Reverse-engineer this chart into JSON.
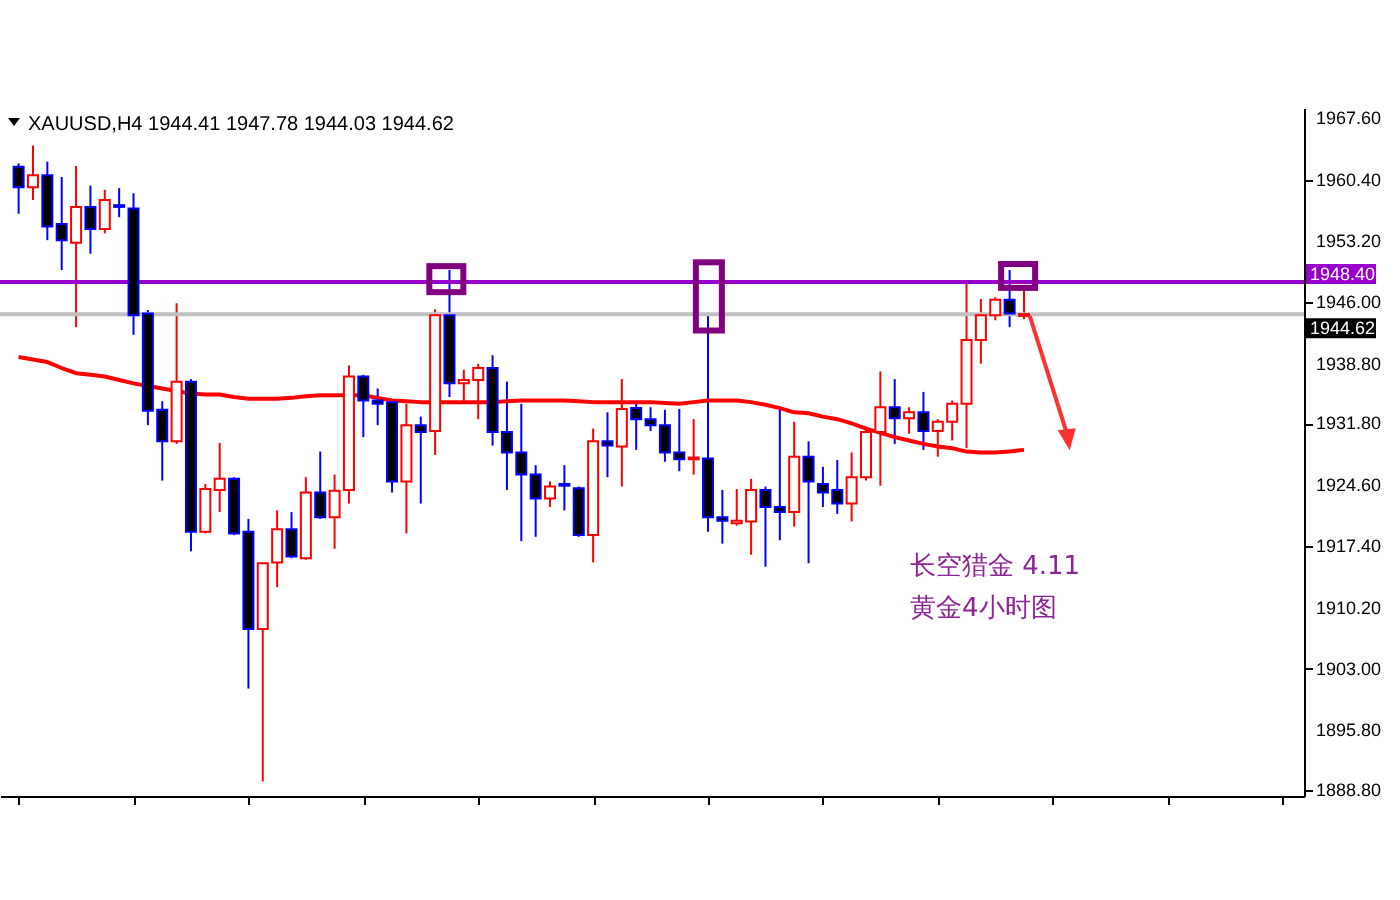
{
  "chart_data": {
    "type": "candlestick",
    "title": "XAUUSD,H4  1944.41 1947.78 1944.03 1944.62",
    "categories": [
      null,
      null,
      null,
      null,
      null,
      null,
      null,
      null,
      null,
      null,
      null,
      null,
      null,
      null,
      null,
      null,
      null,
      null,
      null,
      null,
      null,
      null,
      null,
      null,
      null,
      null,
      null,
      null,
      null,
      null,
      null,
      null,
      null,
      null,
      null,
      null,
      null,
      null,
      null,
      null,
      null,
      null,
      null,
      null,
      null,
      null,
      null,
      null,
      null,
      null,
      null,
      null,
      null,
      null,
      null,
      null,
      null,
      null,
      null,
      null,
      null,
      null,
      null,
      null,
      null,
      null,
      null,
      null,
      null,
      null,
      null
    ],
    "ohlc": [
      [
        1961.9,
        1962.3,
        1956.4,
        1959.5
      ],
      [
        1959.5,
        1964.4,
        1958.0,
        1960.9
      ],
      [
        1960.9,
        1962.5,
        1953.3,
        1954.9
      ],
      [
        1955.2,
        1960.7,
        1949.8,
        1953.3
      ],
      [
        1953.0,
        1962.0,
        1943.1,
        1957.2
      ],
      [
        1957.2,
        1959.7,
        1951.7,
        1954.6
      ],
      [
        1954.6,
        1959.2,
        1954.1,
        1958.0
      ],
      [
        1957.4,
        1959.4,
        1956.0,
        1957.2
      ],
      [
        1957.0,
        1958.8,
        1942.2,
        1944.5
      ],
      [
        1944.7,
        1945.1,
        1931.6,
        1933.3
      ],
      [
        1933.4,
        1934.4,
        1925.1,
        1929.7
      ],
      [
        1929.7,
        1945.9,
        1929.4,
        1936.7
      ],
      [
        1936.7,
        1937.0,
        1916.8,
        1919.1
      ],
      [
        1919.1,
        1924.7,
        1918.9,
        1924.1
      ],
      [
        1924.0,
        1929.5,
        1921.4,
        1925.3
      ],
      [
        1925.3,
        1925.5,
        1918.7,
        1918.9
      ],
      [
        1919.1,
        1920.6,
        1900.7,
        1907.7
      ],
      [
        1907.7,
        1915.5,
        1889.8,
        1915.4
      ],
      [
        1915.5,
        1921.6,
        1912.6,
        1919.4
      ],
      [
        1919.4,
        1921.4,
        1916.0,
        1916.2
      ],
      [
        1916.0,
        1925.5,
        1915.8,
        1923.7
      ],
      [
        1923.7,
        1928.5,
        1920.6,
        1920.8
      ],
      [
        1920.8,
        1925.8,
        1917.1,
        1923.9
      ],
      [
        1924.0,
        1938.6,
        1922.4,
        1937.3
      ],
      [
        1937.3,
        1937.5,
        1930.2,
        1934.5
      ],
      [
        1934.5,
        1935.9,
        1931.6,
        1934.1
      ],
      [
        1934.3,
        1934.5,
        1923.7,
        1925.0
      ],
      [
        1925.0,
        1934.1,
        1918.9,
        1931.6
      ],
      [
        1931.6,
        1932.6,
        1922.4,
        1930.8
      ],
      [
        1930.9,
        1945.2,
        1928.1,
        1944.5
      ],
      [
        1944.5,
        1949.8,
        1934.9,
        1936.5
      ],
      [
        1936.5,
        1938.1,
        1934.1,
        1936.9
      ],
      [
        1936.9,
        1938.8,
        1932.3,
        1938.3
      ],
      [
        1938.3,
        1939.8,
        1929.2,
        1930.8
      ],
      [
        1930.8,
        1936.7,
        1924.0,
        1928.4
      ],
      [
        1928.4,
        1934.1,
        1918.0,
        1925.8
      ],
      [
        1925.8,
        1926.9,
        1918.5,
        1923.0
      ],
      [
        1923.0,
        1925.0,
        1922.0,
        1924.4
      ],
      [
        1924.7,
        1926.9,
        1921.6,
        1924.5
      ],
      [
        1924.2,
        1924.4,
        1918.5,
        1918.7
      ],
      [
        1918.7,
        1931.2,
        1915.5,
        1929.7
      ],
      [
        1929.7,
        1933.1,
        1925.5,
        1929.2
      ],
      [
        1929.1,
        1937.0,
        1924.4,
        1933.5
      ],
      [
        1933.6,
        1934.1,
        1928.7,
        1932.3
      ],
      [
        1932.3,
        1933.7,
        1930.9,
        1931.6
      ],
      [
        1931.6,
        1933.4,
        1927.3,
        1928.4
      ],
      [
        1928.4,
        1933.5,
        1926.2,
        1927.6
      ],
      [
        1927.6,
        1932.3,
        1925.8,
        1927.8
      ],
      [
        1927.7,
        1944.8,
        1919.1,
        1920.8
      ],
      [
        1920.8,
        1924.0,
        1917.7,
        1920.4
      ],
      [
        1920.1,
        1924.1,
        1919.8,
        1920.4
      ],
      [
        1920.3,
        1925.3,
        1916.4,
        1924.0
      ],
      [
        1924.0,
        1924.4,
        1915.0,
        1922.0
      ],
      [
        1922.0,
        1933.6,
        1918.1,
        1921.4
      ],
      [
        1921.4,
        1932.0,
        1919.7,
        1927.9
      ],
      [
        1927.9,
        1929.7,
        1915.4,
        1925.0
      ],
      [
        1924.7,
        1926.7,
        1922.0,
        1923.7
      ],
      [
        1924.0,
        1927.5,
        1921.2,
        1922.4
      ],
      [
        1922.4,
        1928.4,
        1920.3,
        1925.5
      ],
      [
        1925.5,
        1931.4,
        1925.1,
        1930.8
      ],
      [
        1930.8,
        1937.9,
        1924.5,
        1933.7
      ],
      [
        1933.7,
        1937.0,
        1929.4,
        1932.4
      ],
      [
        1932.4,
        1933.7,
        1930.6,
        1933.1
      ],
      [
        1933.1,
        1935.5,
        1928.7,
        1930.9
      ],
      [
        1930.9,
        1932.3,
        1927.9,
        1932.0
      ],
      [
        1932.0,
        1934.5,
        1929.8,
        1934.1
      ],
      [
        1934.1,
        1948.2,
        1928.9,
        1941.6
      ],
      [
        1941.6,
        1946.4,
        1938.8,
        1944.5
      ],
      [
        1944.5,
        1946.6,
        1943.9,
        1946.3
      ],
      [
        1946.3,
        1949.8,
        1943.1,
        1944.7
      ],
      [
        1944.41,
        1947.78,
        1944.03,
        1944.62
      ]
    ],
    "colors": [
      "#0000ff",
      "#ff0000",
      "#0000ff",
      "#0000ff",
      "#ff0000",
      "#0000ff",
      "#ff0000",
      "#0000ff",
      "#0000ff",
      "#0000ff",
      "#0000ff",
      "#ff0000",
      "#0000ff",
      "#ff0000",
      "#ff0000",
      "#0000ff",
      "#0000ff",
      "#ff0000",
      "#ff0000",
      "#0000ff",
      "#ff0000",
      "#0000ff",
      "#ff0000",
      "#ff0000",
      "#0000ff",
      "#0000ff",
      "#0000ff",
      "#ff0000",
      "#0000ff",
      "#ff0000",
      "#0000ff",
      "#ff0000",
      "#ff0000",
      "#0000ff",
      "#0000ff",
      "#0000ff",
      "#0000ff",
      "#ff0000",
      "#0000ff",
      "#0000ff",
      "#ff0000",
      "#0000ff",
      "#ff0000",
      "#0000ff",
      "#0000ff",
      "#0000ff",
      "#0000ff",
      "#ff0000",
      "#0000ff",
      "#0000ff",
      "#ff0000",
      "#ff0000",
      "#0000ff",
      "#0000ff",
      "#ff0000",
      "#0000ff",
      "#0000ff",
      "#0000ff",
      "#ff0000",
      "#ff0000",
      "#ff0000",
      "#0000ff",
      "#ff0000",
      "#0000ff",
      "#ff0000",
      "#ff0000",
      "#ff0000",
      "#ff0000",
      "#ff0000",
      "#0000ff",
      "#ff0000"
    ],
    "series": [
      {
        "type": "line",
        "color": "#ff0000",
        "values": [
          1939.6,
          1939.3,
          1939.0,
          1938.3,
          1937.7,
          1937.5,
          1937.3,
          1936.9,
          1936.5,
          1936.2,
          1935.9,
          1935.6,
          1935.3,
          1935.2,
          1935.2,
          1934.9,
          1934.7,
          1934.7,
          1934.7,
          1934.8,
          1935.0,
          1935.1,
          1935.1,
          1935.1,
          1935.1,
          1934.8,
          1934.5,
          1934.4,
          1934.3,
          1934.3,
          1934.3,
          1934.3,
          1934.3,
          1934.3,
          1934.4,
          1934.5,
          1934.5,
          1934.5,
          1934.5,
          1934.4,
          1934.3,
          1934.3,
          1934.3,
          1934.3,
          1934.3,
          1934.2,
          1934.1,
          1934.3,
          1934.5,
          1934.5,
          1934.5,
          1934.3,
          1934.0,
          1933.6,
          1933.1,
          1933.0,
          1932.6,
          1932.3,
          1931.8,
          1931.2,
          1930.7,
          1930.2,
          1929.8,
          1929.4,
          1929.1,
          1928.9,
          1928.5,
          1928.4,
          1928.4,
          1928.5,
          1928.7
        ]
      }
    ],
    "ylim": [
      1888.1,
      1968.8
    ],
    "yticks": [
      {
        "value": 1967.6,
        "label": "1967.60"
      },
      {
        "value": 1960.4,
        "label": "1960.40"
      },
      {
        "value": 1953.2,
        "label": "1953.20"
      },
      {
        "value": 1946.0,
        "label": "1946.00"
      },
      {
        "value": 1938.8,
        "label": "1938.80"
      },
      {
        "value": 1931.8,
        "label": "1931.80"
      },
      {
        "value": 1924.6,
        "label": "1924.60"
      },
      {
        "value": 1917.4,
        "label": "1917.40"
      },
      {
        "value": 1910.2,
        "label": "1910.20"
      },
      {
        "value": 1903.0,
        "label": "1903.00"
      },
      {
        "value": 1895.8,
        "label": "1895.80"
      },
      {
        "value": 1888.8,
        "label": "1888.80"
      }
    ],
    "ref_lines": [
      {
        "axis": "y",
        "value": 1948.4,
        "label": "1948.40",
        "color": "#9900cc"
      },
      {
        "axis": "y",
        "value": 1944.62,
        "label": "1944.62",
        "color": "#c0c0c0"
      }
    ],
    "annotations": [
      "长空猎金  4.11",
      "黄金4小时图"
    ],
    "grid": false,
    "tick_labels": "y"
  }
}
